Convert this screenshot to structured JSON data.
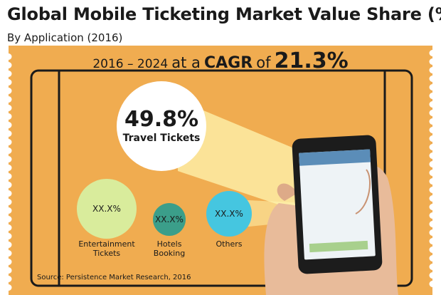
{
  "colors": {
    "ticket": "#F0AC50",
    "border": "#1a1a1a",
    "travel_bubble": "#FFFFFF",
    "entertainment_bubble": "#D9EC9C",
    "hotels_bubble": "#3B9E8A",
    "others_bubble": "#45C6E0",
    "beam": "#FFF6B0"
  },
  "chart_data": {
    "type": "bubble",
    "title": "Global Mobile Ticketing Market Value Share (%)",
    "subtitle": "By Application (2016)",
    "cagr": {
      "years": "2016 – 2024",
      "mid": "at a",
      "word": "CAGR",
      "of": "of",
      "rate": "21.3%"
    },
    "categories": [
      "Travel Tickets",
      "Entertainment\nTickets",
      "Hotels\nBooking",
      "Others"
    ],
    "value_labels": [
      "49.8%",
      "XX.X%",
      "XX.X%",
      "XX.X%"
    ],
    "values": [
      49.8,
      null,
      null,
      null
    ],
    "source": "Source: Persistence Market Research, 2016"
  }
}
